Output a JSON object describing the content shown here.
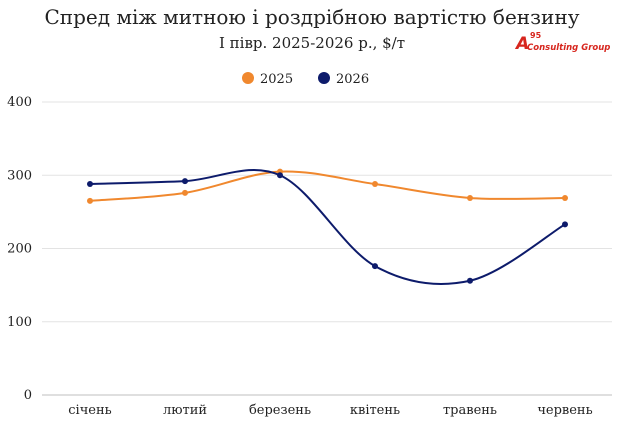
{
  "chart_data": {
    "type": "line",
    "title": "Спред між митною і роздрібною вартістю бензину",
    "subtitle": "І півр. 2025-2026 р., $/т",
    "categories": [
      "січень",
      "лютий",
      "березень",
      "квітень",
      "травень",
      "червень"
    ],
    "series": [
      {
        "name": "2025",
        "values": [
          265,
          276,
          305,
          288,
          269,
          269
        ],
        "color": "#f0882e"
      },
      {
        "name": "2026",
        "values": [
          288,
          292,
          300,
          176,
          156,
          233
        ],
        "color": "#0d1b6b"
      }
    ],
    "yticks": [
      0,
      100,
      200,
      300,
      400
    ],
    "ylim": [
      0,
      400
    ],
    "grid": true,
    "smooth": true,
    "legend_position": "top-center"
  },
  "logo": {
    "mark": "A",
    "superscript": "95",
    "text": "Consulting Group",
    "color": "#d7261e"
  }
}
